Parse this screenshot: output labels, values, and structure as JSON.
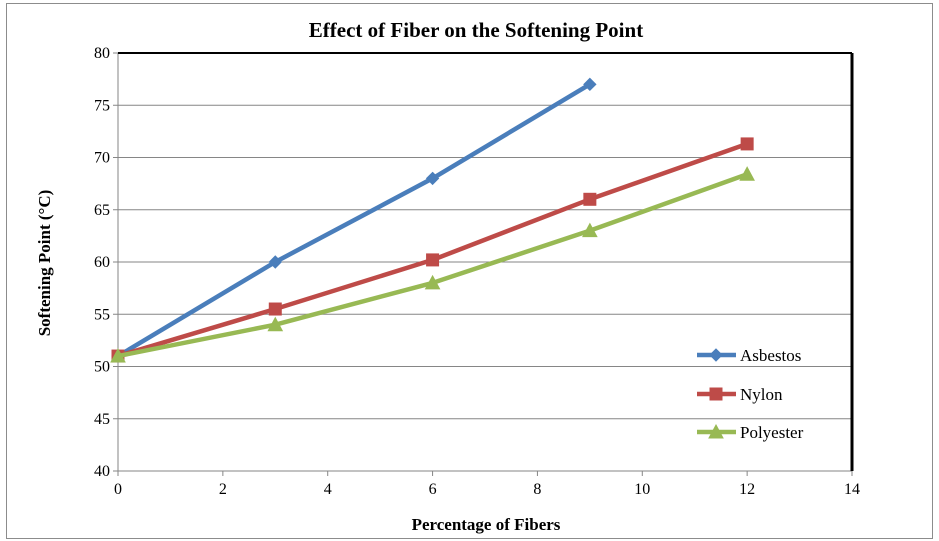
{
  "chart_data": {
    "type": "line",
    "title": "Effect of Fiber on the Softening Point",
    "xlabel": "Percentage of Fibers",
    "ylabel": "Softening Point (°C)",
    "xlim": [
      0,
      14
    ],
    "ylim": [
      40,
      80
    ],
    "x_ticks": [
      "0",
      "2",
      "4",
      "6",
      "8",
      "10",
      "12",
      "14"
    ],
    "y_ticks": [
      "40",
      "45",
      "50",
      "55",
      "60",
      "65",
      "70",
      "75",
      "80"
    ],
    "grid": "horizontal",
    "legend_position": "right",
    "series": [
      {
        "name": "Asbestos",
        "color": "#4a7ebb",
        "marker": "diamond",
        "x": [
          0,
          3,
          6,
          9
        ],
        "y": [
          51,
          60,
          68,
          77
        ]
      },
      {
        "name": "Nylon",
        "color": "#be4b48",
        "marker": "square",
        "x": [
          0,
          3,
          6,
          9,
          12
        ],
        "y": [
          51,
          55.5,
          60.2,
          66,
          71.3
        ]
      },
      {
        "name": "Polyester",
        "color": "#98b954",
        "marker": "triangle",
        "x": [
          0,
          3,
          6,
          9,
          12
        ],
        "y": [
          51,
          54,
          58,
          63,
          68.4
        ]
      }
    ]
  }
}
